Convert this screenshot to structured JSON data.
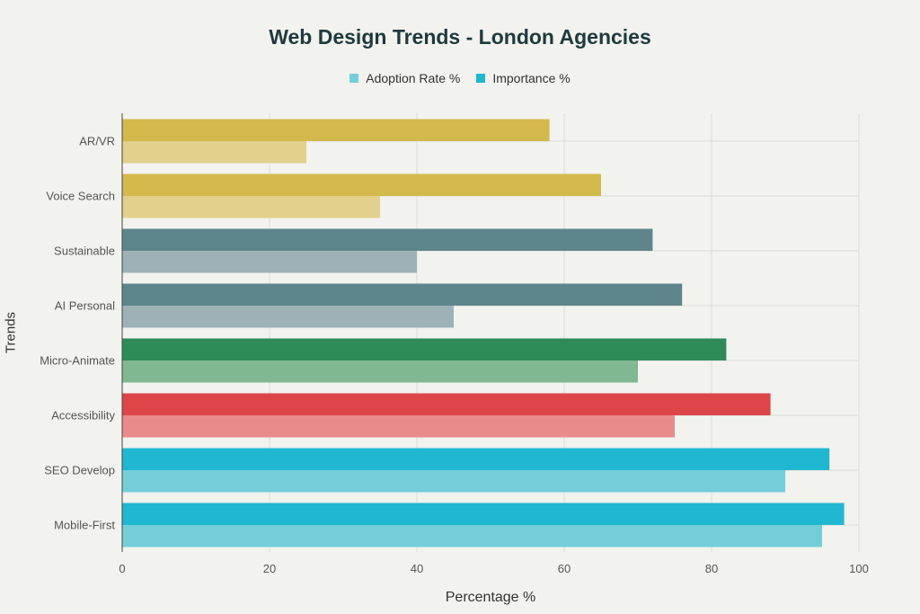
{
  "chart_data": {
    "type": "bar",
    "orientation": "horizontal",
    "title": "Web Design Trends - London Agencies",
    "xlabel": "Percentage %",
    "ylabel": "Trends",
    "xlim": [
      0,
      100
    ],
    "xticks": [
      0,
      20,
      40,
      60,
      80,
      100
    ],
    "grid": true,
    "legend_position": "top-center",
    "categories": [
      "AR/VR",
      "Voice Search",
      "Sustainable",
      "AI Personal",
      "Micro-Animate",
      "Accessibility",
      "SEO Develop",
      "Mobile-First"
    ],
    "series": [
      {
        "name": "Adoption Rate %",
        "values": [
          25,
          35,
          40,
          45,
          70,
          75,
          90,
          95
        ]
      },
      {
        "name": "Importance %",
        "values": [
          58,
          65,
          72,
          76,
          82,
          88,
          96,
          98
        ]
      }
    ],
    "category_colors": {
      "importance": [
        "#d3b94c",
        "#d3b94c",
        "#5f858c",
        "#5f858c",
        "#2e8a58",
        "#dc4649",
        "#20b8d0",
        "#20b8d0"
      ],
      "adoption": [
        "#e2d08c",
        "#e2d08c",
        "#9eb2b6",
        "#9eb2b6",
        "#7fb891",
        "#e98a8b",
        "#74ceda",
        "#74ceda"
      ]
    },
    "legend_colors": [
      "#74ceda",
      "#20b8d0"
    ]
  }
}
